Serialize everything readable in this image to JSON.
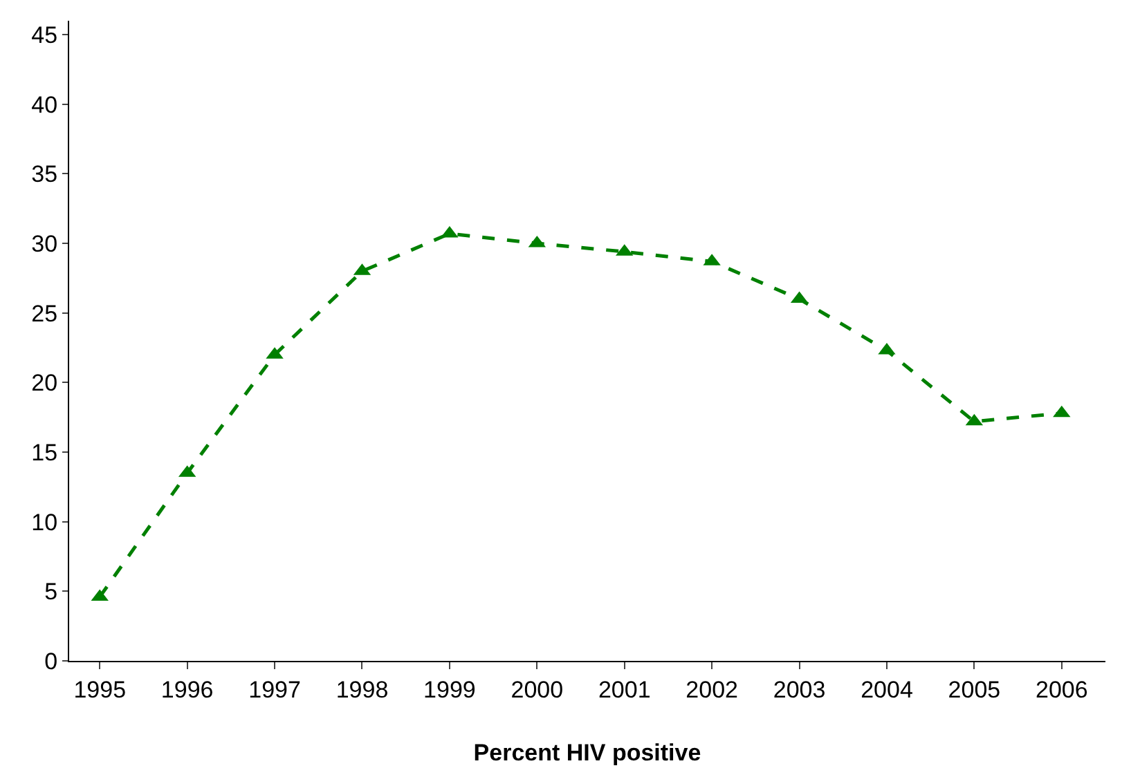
{
  "chart_data": {
    "type": "line",
    "xlabel": "Percent HIV positive",
    "categories": [
      "1995",
      "1996",
      "1997",
      "1998",
      "1999",
      "2000",
      "2001",
      "2002",
      "2003",
      "2004",
      "2005",
      "2006"
    ],
    "series": [
      {
        "color": "#008000",
        "values": [
          4.6,
          13.5,
          22,
          28,
          30.7,
          30,
          29.4,
          28.7,
          26,
          22.3,
          17.2,
          17.8
        ]
      }
    ],
    "ylim": [
      0,
      46
    ],
    "yticks": [
      0,
      5,
      10,
      15,
      20,
      25,
      30,
      35,
      40,
      45
    ],
    "marker": "triangle",
    "line_style": "dashed"
  }
}
